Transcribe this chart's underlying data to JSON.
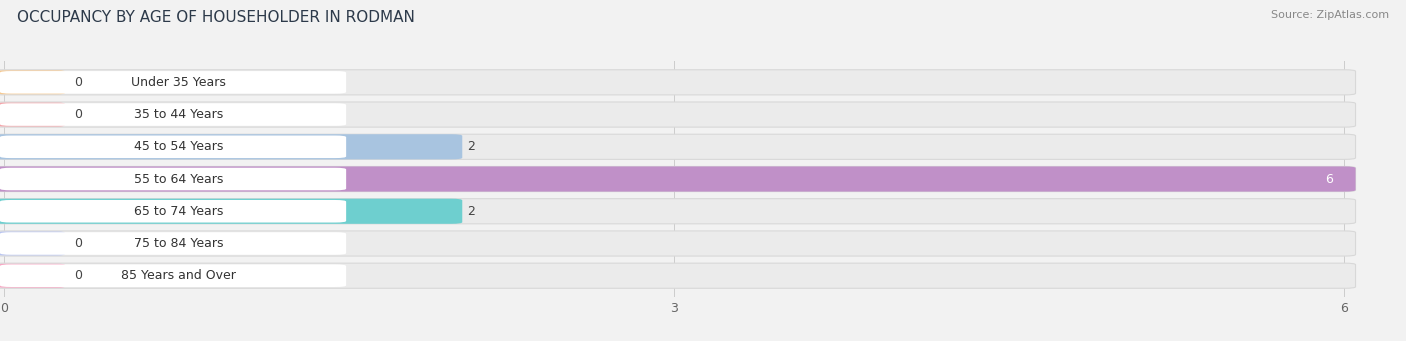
{
  "title": "OCCUPANCY BY AGE OF HOUSEHOLDER IN RODMAN",
  "source": "Source: ZipAtlas.com",
  "categories": [
    "Under 35 Years",
    "35 to 44 Years",
    "45 to 54 Years",
    "55 to 64 Years",
    "65 to 74 Years",
    "75 to 84 Years",
    "85 Years and Over"
  ],
  "values": [
    0,
    0,
    2,
    6,
    2,
    0,
    0
  ],
  "bar_colors": [
    "#f5c992",
    "#f4a3a8",
    "#a8c4e0",
    "#c090c8",
    "#6ecfcf",
    "#b8c4f0",
    "#f7a8c4"
  ],
  "xlim_max": 6,
  "xticks": [
    0,
    3,
    6
  ],
  "background_color": "#f2f2f2",
  "bar_bg_color": "#ebebeb",
  "label_bg_color": "#ffffff",
  "title_fontsize": 11,
  "source_fontsize": 8,
  "label_fontsize": 9,
  "value_fontsize": 9,
  "tick_fontsize": 9,
  "bar_height": 0.68,
  "figsize": [
    14.06,
    3.41
  ]
}
